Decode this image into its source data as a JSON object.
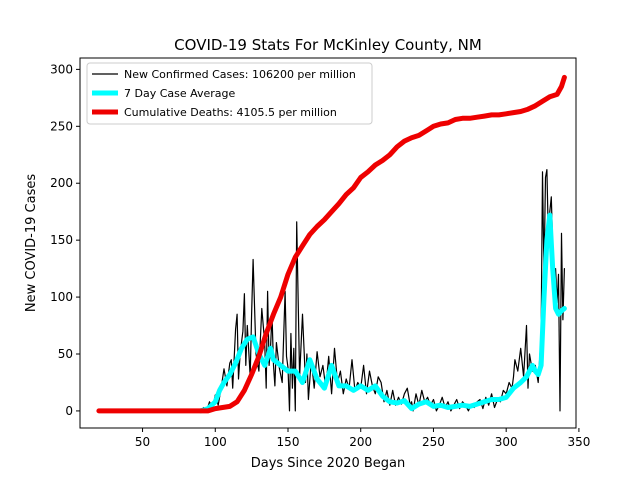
{
  "chart_data": {
    "type": "line",
    "title": "COVID-19 Stats For McKinley County, NM",
    "xlabel": "Days Since 2020 Began",
    "ylabel": "New COVID-19 Cases",
    "xlim": [
      7,
      348
    ],
    "ylim": [
      -15,
      310
    ],
    "xticks": [
      50,
      100,
      150,
      200,
      250,
      300,
      350
    ],
    "yticks": [
      0,
      50,
      100,
      150,
      200,
      250,
      300
    ],
    "grid": false,
    "legend_position": "top-left",
    "series": [
      {
        "name": "New Confirmed Cases: 106200 per million",
        "color": "#000000",
        "x": [
          90,
          92,
          94,
          96,
          98,
          100,
          102,
          104,
          105,
          106,
          108,
          110,
          111,
          112,
          114,
          115,
          116,
          117,
          118,
          119,
          120,
          121,
          122,
          124,
          125,
          126,
          128,
          130,
          132,
          134,
          135,
          136,
          137,
          138,
          139,
          140,
          141,
          142,
          144,
          146,
          148,
          149,
          150,
          151,
          152,
          153,
          154,
          155,
          156,
          158,
          160,
          162,
          163,
          164,
          166,
          168,
          170,
          172,
          174,
          176,
          178,
          180,
          182,
          184,
          186,
          188,
          190,
          192,
          194,
          196,
          198,
          200,
          202,
          204,
          206,
          208,
          210,
          212,
          214,
          216,
          218,
          220,
          222,
          224,
          226,
          228,
          230,
          232,
          234,
          235,
          236,
          238,
          240,
          242,
          244,
          246,
          248,
          250,
          252,
          254,
          256,
          258,
          260,
          262,
          264,
          266,
          268,
          270,
          272,
          274,
          276,
          278,
          280,
          282,
          284,
          286,
          288,
          290,
          292,
          294,
          296,
          298,
          300,
          302,
          304,
          305,
          306,
          308,
          310,
          312,
          314,
          315,
          316,
          318,
          320,
          322,
          323,
          324,
          325,
          326,
          327,
          328,
          329,
          330,
          331,
          332,
          333,
          334,
          335,
          336,
          337,
          338,
          339,
          340
        ],
        "values": [
          0,
          3,
          0,
          8,
          2,
          14,
          5,
          20,
          28,
          37,
          22,
          42,
          45,
          20,
          72,
          85,
          28,
          48,
          60,
          70,
          103,
          40,
          75,
          30,
          85,
          133,
          50,
          35,
          90,
          60,
          20,
          105,
          40,
          55,
          85,
          40,
          22,
          60,
          38,
          25,
          105,
          48,
          38,
          0,
          68,
          20,
          55,
          0,
          166,
          30,
          85,
          25,
          50,
          10,
          45,
          20,
          52,
          30,
          40,
          20,
          48,
          15,
          55,
          25,
          35,
          15,
          28,
          20,
          45,
          18,
          25,
          20,
          40,
          15,
          35,
          22,
          15,
          30,
          25,
          8,
          18,
          5,
          18,
          5,
          12,
          6,
          15,
          20,
          5,
          8,
          0,
          15,
          5,
          18,
          8,
          12,
          5,
          10,
          0,
          5,
          12,
          3,
          8,
          0,
          5,
          10,
          2,
          8,
          5,
          0,
          6,
          3,
          8,
          10,
          2,
          12,
          5,
          15,
          3,
          10,
          8,
          18,
          15,
          25,
          20,
          30,
          45,
          35,
          55,
          30,
          75,
          20,
          50,
          35,
          40,
          25,
          45,
          65,
          210,
          120,
          205,
          212,
          150,
          175,
          188,
          145,
          110,
          125,
          95,
          120,
          0,
          156,
          80,
          125
        ]
      },
      {
        "name": "7 Day Case Average",
        "color": "#00ffff",
        "x": [
          90,
          95,
          100,
          103,
          106,
          110,
          114,
          118,
          122,
          126,
          130,
          134,
          138,
          140,
          145,
          150,
          155,
          160,
          165,
          170,
          175,
          180,
          185,
          190,
          195,
          200,
          205,
          210,
          215,
          220,
          225,
          230,
          235,
          240,
          245,
          250,
          255,
          260,
          265,
          270,
          275,
          280,
          285,
          290,
          295,
          300,
          305,
          310,
          314,
          318,
          320,
          322,
          324,
          326,
          328,
          330,
          332,
          334,
          336,
          338,
          340
        ],
        "values": [
          0,
          2,
          8,
          18,
          25,
          32,
          42,
          55,
          63,
          65,
          50,
          40,
          55,
          45,
          40,
          35,
          35,
          25,
          45,
          28,
          20,
          40,
          22,
          22,
          18,
          22,
          18,
          22,
          13,
          8,
          7,
          9,
          2,
          6,
          8,
          4,
          5,
          3,
          4,
          5,
          4,
          6,
          8,
          10,
          10,
          12,
          20,
          25,
          30,
          40,
          35,
          32,
          40,
          100,
          150,
          172,
          125,
          90,
          85,
          88,
          90
        ]
      },
      {
        "name": "Cumulative Deaths: 4105.5 per million",
        "color": "#ee0000",
        "x": [
          20,
          40,
          60,
          80,
          95,
          100,
          105,
          110,
          115,
          120,
          125,
          130,
          135,
          140,
          145,
          150,
          155,
          160,
          165,
          170,
          175,
          180,
          185,
          190,
          195,
          200,
          205,
          210,
          215,
          220,
          225,
          230,
          235,
          240,
          245,
          250,
          255,
          260,
          265,
          270,
          275,
          280,
          285,
          290,
          295,
          300,
          305,
          310,
          315,
          320,
          325,
          330,
          335,
          338,
          340
        ],
        "values": [
          0,
          0,
          0,
          0,
          0,
          2,
          3,
          4,
          8,
          18,
          32,
          48,
          68,
          85,
          100,
          120,
          135,
          145,
          155,
          162,
          168,
          175,
          182,
          190,
          196,
          205,
          210,
          216,
          220,
          225,
          232,
          237,
          240,
          242,
          246,
          250,
          252,
          253,
          256,
          257,
          257,
          258,
          259,
          260,
          260,
          261,
          262,
          263,
          265,
          268,
          272,
          276,
          278,
          285,
          293
        ]
      }
    ]
  }
}
